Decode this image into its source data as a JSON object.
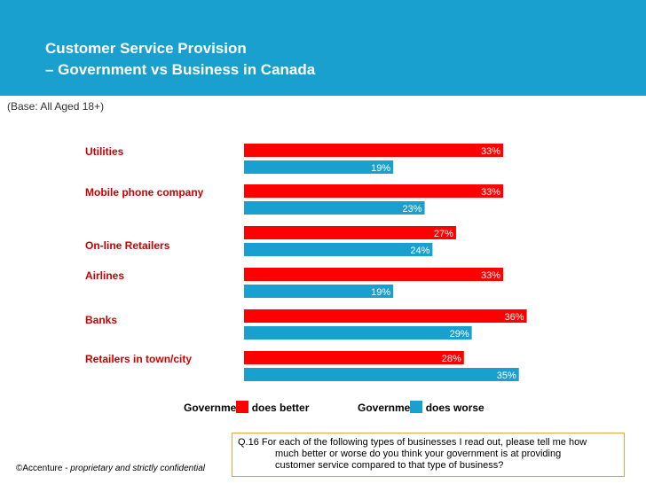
{
  "header": {
    "title_line1": "Customer Service Provision",
    "title_line2": "– Government vs Business in Canada",
    "color": "#1aa0cf"
  },
  "base_note": "(Base: All Aged 18+)",
  "chart_data": {
    "type": "bar",
    "orientation": "horizontal",
    "categories": [
      "Utilities",
      "Mobile phone company",
      "On-line Retailers",
      "Airlines",
      "Banks",
      "Retailers in town/city"
    ],
    "series": [
      {
        "name": "Government does better",
        "values": [
          33,
          33,
          27,
          33,
          36,
          28
        ],
        "color": "#ff0000"
      },
      {
        "name": "Government does worse",
        "values": [
          19,
          23,
          24,
          19,
          29,
          35
        ],
        "color": "#1aa0cf"
      }
    ],
    "value_suffix": "%",
    "category_label_color": "#cc0000",
    "xlim": [
      0,
      36
    ],
    "grid": false,
    "legend_position": "bottom"
  },
  "question": {
    "line1": "Q.16 For each of the following types of businesses I read out, please tell me how",
    "line2": "much better or worse do you think your government is at providing",
    "line3": "customer service compared to that type of business?",
    "border_color": "#e8a33c"
  },
  "footer": {
    "copyright_prefix": "©Accenture - ",
    "copyright_italic": "proprietary and strictly confidential"
  }
}
